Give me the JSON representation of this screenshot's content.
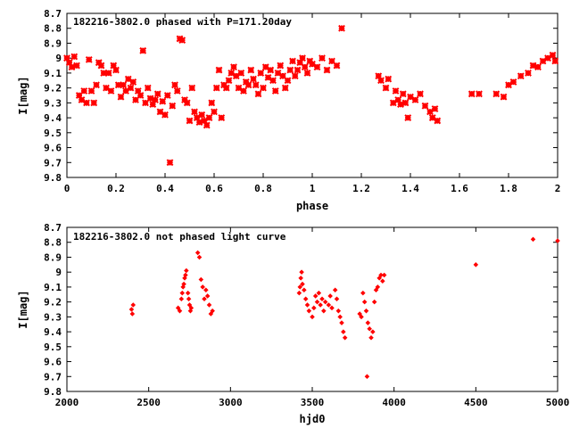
{
  "chart_data": [
    {
      "type": "scatter",
      "title": "182216-3802.0 phased with P=171.20day",
      "xlabel": "phase",
      "ylabel": "I[mag]",
      "xlim": [
        0,
        2
      ],
      "ylim": [
        8.7,
        9.8
      ],
      "y_inverted": true,
      "grid": false,
      "xticks": [
        "0",
        "0.2",
        "0.4",
        "0.6",
        "0.8",
        "1",
        "1.2",
        "1.4",
        "1.6",
        "1.8",
        "2"
      ],
      "yticks": [
        "8.7",
        "8.8",
        "8.9",
        "9",
        "9.1",
        "9.2",
        "9.3",
        "9.4",
        "9.5",
        "9.6",
        "9.7",
        "9.8"
      ],
      "marker": "star",
      "color": "#ff0000",
      "series": [
        {
          "points": [
            [
              0.0,
              9.0
            ],
            [
              0.01,
              9.03
            ],
            [
              0.02,
              9.06
            ],
            [
              0.03,
              8.99
            ],
            [
              0.04,
              9.05
            ],
            [
              0.05,
              9.25
            ],
            [
              0.06,
              9.28
            ],
            [
              0.07,
              9.22
            ],
            [
              0.08,
              9.3
            ],
            [
              0.09,
              9.01
            ],
            [
              0.1,
              9.22
            ],
            [
              0.11,
              9.3
            ],
            [
              0.12,
              9.18
            ],
            [
              0.13,
              9.03
            ],
            [
              0.14,
              9.05
            ],
            [
              0.15,
              9.1
            ],
            [
              0.16,
              9.2
            ],
            [
              0.17,
              9.1
            ],
            [
              0.18,
              9.22
            ],
            [
              0.19,
              9.05
            ],
            [
              0.2,
              9.08
            ],
            [
              0.21,
              9.18
            ],
            [
              0.22,
              9.26
            ],
            [
              0.23,
              9.18
            ],
            [
              0.24,
              9.22
            ],
            [
              0.25,
              9.14
            ],
            [
              0.26,
              9.2
            ],
            [
              0.27,
              9.16
            ],
            [
              0.28,
              9.28
            ],
            [
              0.29,
              9.22
            ],
            [
              0.3,
              9.25
            ],
            [
              0.31,
              8.95
            ],
            [
              0.32,
              9.3
            ],
            [
              0.33,
              9.2
            ],
            [
              0.34,
              9.27
            ],
            [
              0.35,
              9.31
            ],
            [
              0.36,
              9.28
            ],
            [
              0.37,
              9.24
            ],
            [
              0.38,
              9.36
            ],
            [
              0.39,
              9.29
            ],
            [
              0.4,
              9.38
            ],
            [
              0.41,
              9.25
            ],
            [
              0.42,
              9.7
            ],
            [
              0.43,
              9.32
            ],
            [
              0.44,
              9.18
            ],
            [
              0.45,
              9.22
            ],
            [
              0.46,
              8.87
            ],
            [
              0.47,
              8.88
            ],
            [
              0.48,
              9.28
            ],
            [
              0.49,
              9.3
            ],
            [
              0.5,
              9.42
            ],
            [
              0.51,
              9.2
            ],
            [
              0.52,
              9.36
            ],
            [
              0.53,
              9.4
            ],
            [
              0.54,
              9.43
            ],
            [
              0.55,
              9.38
            ],
            [
              0.56,
              9.42
            ],
            [
              0.57,
              9.45
            ],
            [
              0.58,
              9.4
            ],
            [
              0.59,
              9.3
            ],
            [
              0.6,
              9.36
            ],
            [
              0.61,
              9.2
            ],
            [
              0.62,
              9.08
            ],
            [
              0.63,
              9.4
            ],
            [
              0.64,
              9.18
            ],
            [
              0.65,
              9.2
            ],
            [
              0.66,
              9.15
            ],
            [
              0.67,
              9.1
            ],
            [
              0.68,
              9.06
            ],
            [
              0.69,
              9.12
            ],
            [
              0.7,
              9.2
            ],
            [
              0.71,
              9.1
            ],
            [
              0.72,
              9.22
            ],
            [
              0.73,
              9.16
            ],
            [
              0.74,
              9.18
            ],
            [
              0.75,
              9.08
            ],
            [
              0.76,
              9.14
            ],
            [
              0.77,
              9.18
            ],
            [
              0.78,
              9.24
            ],
            [
              0.79,
              9.1
            ],
            [
              0.8,
              9.2
            ],
            [
              0.81,
              9.06
            ],
            [
              0.82,
              9.13
            ],
            [
              0.83,
              9.08
            ],
            [
              0.84,
              9.15
            ],
            [
              0.85,
              9.22
            ],
            [
              0.86,
              9.1
            ],
            [
              0.87,
              9.05
            ],
            [
              0.88,
              9.12
            ],
            [
              0.89,
              9.2
            ],
            [
              0.9,
              9.15
            ],
            [
              0.91,
              9.08
            ],
            [
              0.92,
              9.02
            ],
            [
              0.93,
              9.12
            ],
            [
              0.94,
              9.08
            ],
            [
              0.95,
              9.03
            ],
            [
              0.96,
              9.0
            ],
            [
              0.97,
              9.06
            ],
            [
              0.98,
              9.1
            ],
            [
              0.99,
              9.02
            ],
            [
              1.0,
              9.04
            ],
            [
              1.02,
              9.06
            ],
            [
              1.04,
              9.0
            ],
            [
              1.06,
              9.08
            ],
            [
              1.08,
              9.02
            ],
            [
              1.1,
              9.05
            ],
            [
              1.12,
              8.8
            ],
            [
              1.27,
              9.12
            ],
            [
              1.28,
              9.15
            ],
            [
              1.3,
              9.2
            ],
            [
              1.31,
              9.14
            ],
            [
              1.33,
              9.3
            ],
            [
              1.34,
              9.22
            ],
            [
              1.35,
              9.28
            ],
            [
              1.36,
              9.31
            ],
            [
              1.37,
              9.24
            ],
            [
              1.38,
              9.3
            ],
            [
              1.39,
              9.4
            ],
            [
              1.4,
              9.26
            ],
            [
              1.42,
              9.28
            ],
            [
              1.44,
              9.24
            ],
            [
              1.46,
              9.32
            ],
            [
              1.48,
              9.36
            ],
            [
              1.49,
              9.4
            ],
            [
              1.5,
              9.34
            ],
            [
              1.51,
              9.42
            ],
            [
              1.65,
              9.24
            ],
            [
              1.68,
              9.24
            ],
            [
              1.75,
              9.24
            ],
            [
              1.78,
              9.26
            ],
            [
              1.8,
              9.18
            ],
            [
              1.82,
              9.16
            ],
            [
              1.85,
              9.12
            ],
            [
              1.88,
              9.1
            ],
            [
              1.9,
              9.05
            ],
            [
              1.92,
              9.06
            ],
            [
              1.94,
              9.02
            ],
            [
              1.96,
              9.0
            ],
            [
              1.98,
              8.98
            ],
            [
              1.99,
              9.02
            ]
          ]
        }
      ]
    },
    {
      "type": "scatter",
      "title": "182216-3802.0 not phased light curve",
      "xlabel": "hjd0",
      "ylabel": "I[mag]",
      "xlim": [
        2000,
        5000
      ],
      "ylim": [
        8.7,
        9.8
      ],
      "y_inverted": true,
      "grid": false,
      "xticks": [
        "2000",
        "2500",
        "3000",
        "3500",
        "4000",
        "4500",
        "5000"
      ],
      "yticks": [
        "8.7",
        "8.8",
        "8.9",
        "9",
        "9.1",
        "9.2",
        "9.3",
        "9.4",
        "9.5",
        "9.6",
        "9.7",
        "9.8"
      ],
      "marker": "diamond",
      "color": "#ff0000",
      "series": [
        {
          "points": [
            [
              2395,
              9.25
            ],
            [
              2400,
              9.28
            ],
            [
              2405,
              9.22
            ],
            [
              2680,
              9.24
            ],
            [
              2690,
              9.26
            ],
            [
              2700,
              9.18
            ],
            [
              2705,
              9.14
            ],
            [
              2710,
              9.1
            ],
            [
              2715,
              9.08
            ],
            [
              2720,
              9.04
            ],
            [
              2725,
              9.02
            ],
            [
              2730,
              8.99
            ],
            [
              2740,
              9.14
            ],
            [
              2745,
              9.18
            ],
            [
              2750,
              9.22
            ],
            [
              2755,
              9.26
            ],
            [
              2760,
              9.24
            ],
            [
              2800,
              8.87
            ],
            [
              2810,
              8.9
            ],
            [
              2820,
              9.05
            ],
            [
              2830,
              9.1
            ],
            [
              2840,
              9.18
            ],
            [
              2850,
              9.12
            ],
            [
              2860,
              9.16
            ],
            [
              2870,
              9.22
            ],
            [
              2880,
              9.28
            ],
            [
              2890,
              9.26
            ],
            [
              3420,
              9.14
            ],
            [
              3425,
              9.1
            ],
            [
              3430,
              9.04
            ],
            [
              3435,
              9.0
            ],
            [
              3440,
              9.08
            ],
            [
              3450,
              9.12
            ],
            [
              3460,
              9.18
            ],
            [
              3470,
              9.22
            ],
            [
              3480,
              9.26
            ],
            [
              3500,
              9.3
            ],
            [
              3510,
              9.24
            ],
            [
              3520,
              9.16
            ],
            [
              3530,
              9.2
            ],
            [
              3540,
              9.14
            ],
            [
              3550,
              9.22
            ],
            [
              3560,
              9.18
            ],
            [
              3570,
              9.26
            ],
            [
              3580,
              9.2
            ],
            [
              3600,
              9.22
            ],
            [
              3610,
              9.16
            ],
            [
              3620,
              9.24
            ],
            [
              3640,
              9.12
            ],
            [
              3650,
              9.18
            ],
            [
              3660,
              9.26
            ],
            [
              3670,
              9.3
            ],
            [
              3680,
              9.34
            ],
            [
              3690,
              9.4
            ],
            [
              3700,
              9.44
            ],
            [
              3790,
              9.28
            ],
            [
              3800,
              9.3
            ],
            [
              3810,
              9.14
            ],
            [
              3820,
              9.2
            ],
            [
              3830,
              9.26
            ],
            [
              3835,
              9.7
            ],
            [
              3840,
              9.34
            ],
            [
              3850,
              9.38
            ],
            [
              3860,
              9.44
            ],
            [
              3870,
              9.4
            ],
            [
              3880,
              9.2
            ],
            [
              3890,
              9.12
            ],
            [
              3900,
              9.1
            ],
            [
              3910,
              9.04
            ],
            [
              3920,
              9.02
            ],
            [
              3930,
              9.06
            ],
            [
              3940,
              9.02
            ],
            [
              4500,
              8.95
            ],
            [
              4850,
              8.78
            ],
            [
              5000,
              8.79
            ]
          ]
        }
      ]
    }
  ]
}
